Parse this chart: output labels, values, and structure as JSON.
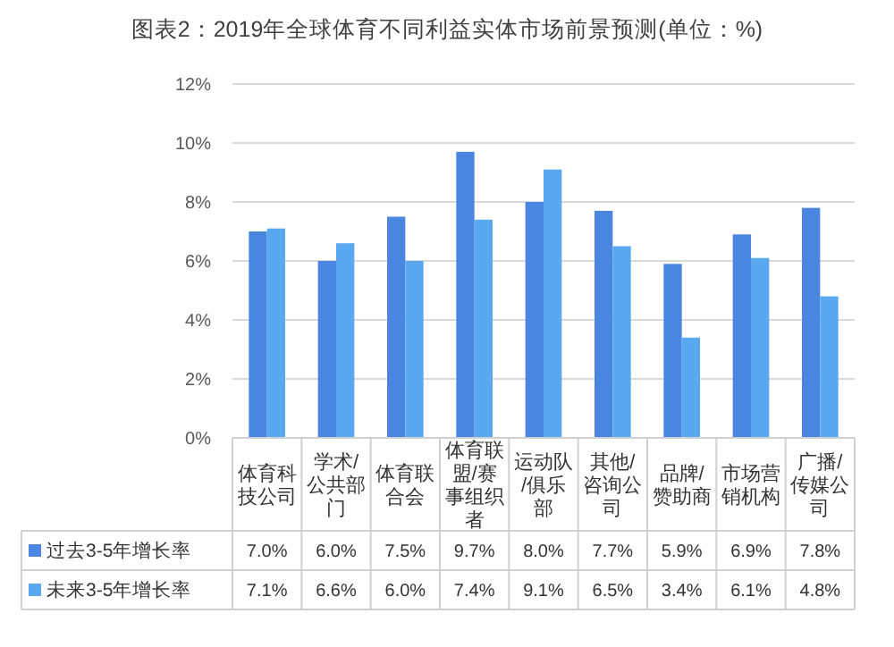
{
  "chart_data": {
    "type": "bar",
    "title": "图表2：2019年全球体育不同利益实体市场前景预测(单位：%)",
    "categories": [
      "体育科技公司",
      "学术/公共部门",
      "体育联合会",
      "体育联盟/赛事组织者",
      "运动队/俱乐部",
      "其他/咨询公司",
      "品牌/赞助商",
      "市场营销机构",
      "广播/传媒公司"
    ],
    "series": [
      {
        "name": "过去3-5年增长率",
        "color": "#4a86e0",
        "values": [
          7.0,
          6.0,
          7.5,
          9.7,
          8.0,
          7.7,
          5.9,
          6.9,
          7.8
        ],
        "value_labels": [
          "7.0%",
          "6.0%",
          "7.5%",
          "9.7%",
          "8.0%",
          "7.7%",
          "5.9%",
          "6.9%",
          "7.8%"
        ]
      },
      {
        "name": "未来3-5年增长率",
        "color": "#5aa8f0",
        "values": [
          7.1,
          6.6,
          6.0,
          7.4,
          9.1,
          6.5,
          3.4,
          6.1,
          4.8
        ],
        "value_labels": [
          "7.1%",
          "6.6%",
          "6.0%",
          "7.4%",
          "9.1%",
          "6.5%",
          "3.4%",
          "6.1%",
          "4.8%"
        ]
      }
    ],
    "ylim": [
      0,
      12
    ],
    "yticks": [
      {
        "value": 0,
        "label": "0%"
      },
      {
        "value": 2,
        "label": "2%"
      },
      {
        "value": 4,
        "label": "4%"
      },
      {
        "value": 6,
        "label": "6%"
      },
      {
        "value": 8,
        "label": "8%"
      },
      {
        "value": 10,
        "label": "10%"
      },
      {
        "value": 12,
        "label": "12%"
      }
    ],
    "grid": "y",
    "legend": "bottom left"
  }
}
